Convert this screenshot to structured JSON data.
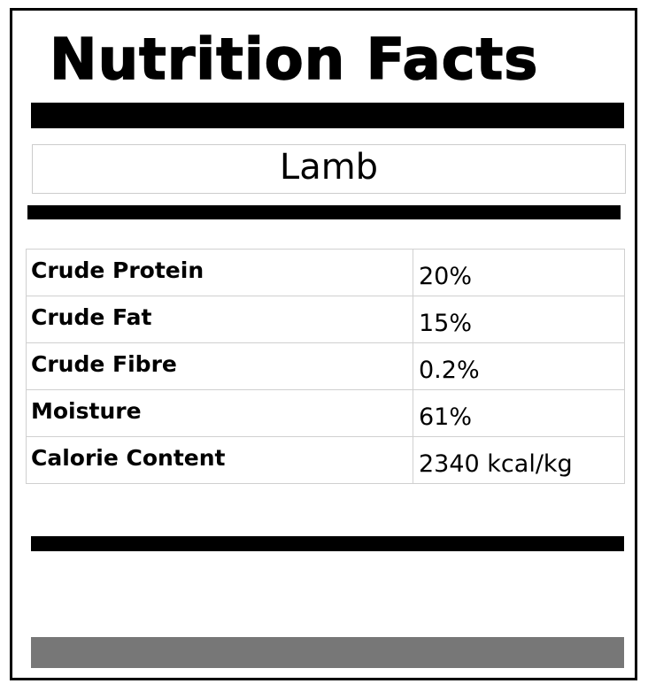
{
  "label": {
    "title": "Nutrition Facts",
    "product": "Lamb",
    "rows": [
      {
        "name": "Crude Protein",
        "value": "20%"
      },
      {
        "name": "Crude Fat",
        "value": "15%"
      },
      {
        "name": "Crude Fibre",
        "value": "0.2%"
      },
      {
        "name": "Moisture",
        "value": "61%"
      },
      {
        "name": "Calorie Content",
        "value": "2340 kcal/kg"
      }
    ]
  },
  "colors": {
    "text": "#000000",
    "border": "#000000",
    "grey_bar": "#777777",
    "grid_line": "#d0d0d0"
  }
}
